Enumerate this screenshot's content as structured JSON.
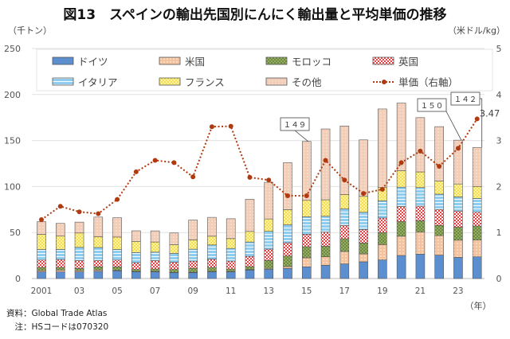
{
  "title": "図13　スペインの輸出先国別にんにく輸出量と平均単価の推移",
  "left_unit": "（千トン）",
  "right_unit": "（米ドル/kg）",
  "footnotes": [
    "資料：Global Trade Atlas",
    "　注：HSコードは070320"
  ],
  "chart_data": {
    "type": "bar",
    "stacked": true,
    "title": "図13　スペインの輸出先国別にんにく輸出量と平均単価の推移",
    "xlabel": "（年）",
    "ylabel": "（千トン）",
    "y2label": "（米ドル/kg）",
    "ylim": [
      0,
      250
    ],
    "y2lim": [
      0,
      5
    ],
    "yticks": [
      "0",
      "50",
      "100",
      "150",
      "200",
      "250"
    ],
    "y2ticks": [
      "0",
      "1",
      "2",
      "3",
      "4",
      "5"
    ],
    "grid": true,
    "legend_placement": "top",
    "categories": [
      2001,
      2002,
      2003,
      2004,
      2005,
      2006,
      2007,
      2008,
      2009,
      2010,
      2011,
      2012,
      2013,
      2014,
      2015,
      2016,
      2017,
      2018,
      2019,
      2020,
      2021,
      2022,
      2023,
      2024
    ],
    "xtick_labels": [
      "2001",
      "",
      "03",
      "",
      "05",
      "",
      "07",
      "",
      "09",
      "",
      "11",
      "",
      "13",
      "",
      "15",
      "",
      "17",
      "",
      "19",
      "",
      "21",
      "",
      "23",
      ""
    ],
    "series": [
      {
        "name": "ドイツ",
        "color": "#5b8fd0",
        "values": [
          7.2,
          7.2,
          7.2,
          7.8,
          8.4,
          7.2,
          7.2,
          6.3,
          6.3,
          7.2,
          7.2,
          9.2,
          10,
          11,
          12.7,
          14.4,
          15.9,
          18.2,
          20.2,
          25,
          26.5,
          25.4,
          23,
          23.6
        ]
      },
      {
        "name": "米国",
        "color": "#f5c29e",
        "values": [
          1.4,
          2,
          1.4,
          1.4,
          0.5,
          0.5,
          0.5,
          0.3,
          0.5,
          0.5,
          0.5,
          0.5,
          1,
          2,
          9.8,
          9.2,
          13.5,
          8.6,
          16.7,
          21,
          23.9,
          21.3,
          18.7,
          18.2
        ]
      },
      {
        "name": "モロッコ",
        "color": "#6e8b3d",
        "values": [
          3.5,
          2.9,
          2.3,
          3.5,
          3.7,
          2.1,
          2.6,
          3.2,
          4.3,
          4.3,
          2.6,
          3.2,
          8.6,
          11.5,
          12.1,
          11.5,
          13.8,
          11.8,
          13,
          15.9,
          12.4,
          11,
          14.1,
          15.3
        ]
      },
      {
        "name": "英国",
        "color": "#e84040",
        "values": [
          8,
          8.6,
          8.6,
          6.9,
          7.5,
          7.5,
          9.2,
          8,
          7.8,
          9.2,
          8.6,
          11.2,
          12.4,
          14.4,
          13.5,
          15.3,
          14.4,
          14.7,
          15.9,
          16.4,
          15.9,
          17.3,
          17.6,
          15
        ]
      },
      {
        "name": "イタリア",
        "color": "#8ecdf0",
        "values": [
          11.5,
          11,
          14.4,
          14.1,
          11.5,
          11,
          9.2,
          9.5,
          13,
          15.3,
          13.8,
          15.6,
          19.3,
          19.6,
          19,
          17.3,
          18.2,
          18.7,
          18.7,
          21,
          20.2,
          16.7,
          15.3,
          15
        ]
      },
      {
        "name": "フランス",
        "color": "#f5e048",
        "values": [
          16.4,
          14.4,
          15.6,
          11.8,
          13.5,
          12.1,
          11,
          9.5,
          10.1,
          9.5,
          10.7,
          11.5,
          13.5,
          16.4,
          17.9,
          17.9,
          15.6,
          17.3,
          14.4,
          17.9,
          17,
          14.4,
          14.1,
          13
        ]
      },
      {
        "name": "その他",
        "color": "#f2cdb8",
        "values": [
          13.8,
          13.8,
          11.8,
          21.3,
          21,
          11.5,
          12.1,
          12.7,
          21.6,
          20.5,
          21.6,
          34.9,
          39.8,
          51,
          64,
          77,
          74.4,
          61.4,
          85.4,
          73.5,
          59,
          59,
          47.6,
          42.4
        ]
      }
    ],
    "line_series": {
      "name": "単価（右軸）",
      "color": "#b03a10",
      "axis": "right",
      "values": [
        1.28,
        1.57,
        1.45,
        1.41,
        1.72,
        2.32,
        2.57,
        2.52,
        2.21,
        3.3,
        3.31,
        2.2,
        2.14,
        1.8,
        1.8,
        2.57,
        2.14,
        1.85,
        1.94,
        2.52,
        2.77,
        2.44,
        2.83,
        3.47
      ]
    },
    "annotations": [
      {
        "year": 2015,
        "text": "１４９"
      },
      {
        "year": 2023,
        "text": "１５０"
      },
      {
        "year": 2024,
        "text": "１４２"
      },
      {
        "year": 2024,
        "text": "3.47",
        "series": "単価（右軸）"
      }
    ]
  }
}
